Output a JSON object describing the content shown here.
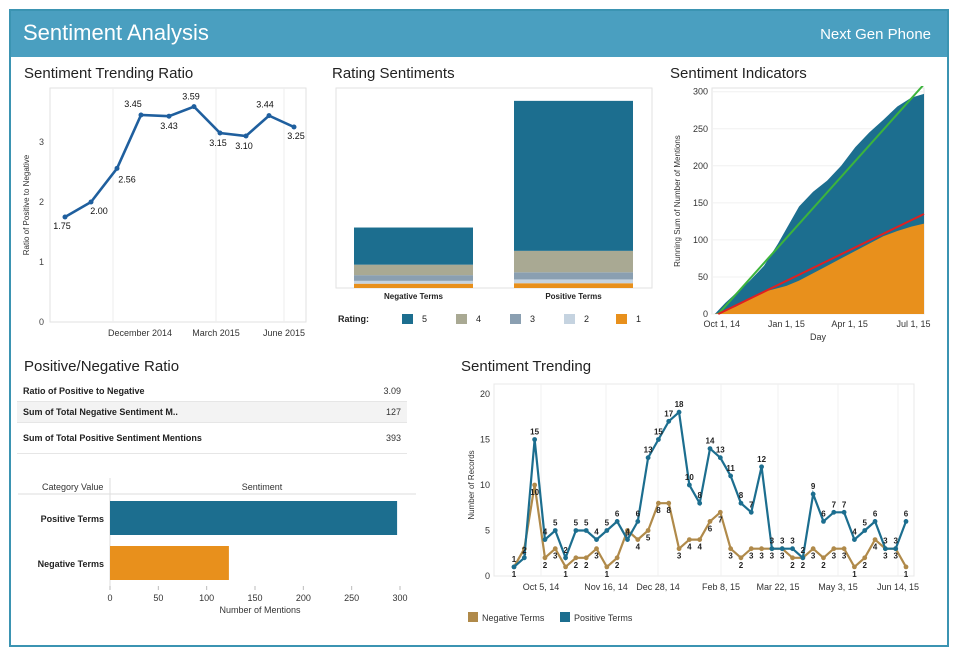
{
  "header": {
    "title": "Sentiment Analysis",
    "subtitle": "Next Gen Phone"
  },
  "colors": {
    "positive": "#1c6e8f",
    "negative": "#e8901c",
    "banner": "#4a9fc0",
    "green_line": "#3cb43c",
    "red_line": "#e02020"
  },
  "panels": {
    "trending_ratio": "Sentiment Trending Ratio",
    "rating_sentiments": "Rating Sentiments",
    "indicators": "Sentiment Indicators",
    "pos_neg_ratio": "Positive/Negative Ratio",
    "trending": "Sentiment Trending"
  },
  "table": {
    "rows": [
      {
        "label": "Ratio of Positive to Negative",
        "value": "3.09"
      },
      {
        "label": "Sum of Total Negative Sentiment M..",
        "value": "127"
      },
      {
        "label": "Sum of Total Positive Sentiment Mentions",
        "value": "393"
      }
    ]
  },
  "chart_data": [
    {
      "type": "line",
      "title": "Sentiment Trending Ratio",
      "ylabel": "Ratio of Positive to Negative",
      "xlabel": "",
      "x_ticks": [
        "December 2014",
        "March 2015",
        "June 2015"
      ],
      "y_ticks": [
        "0",
        "1",
        "2",
        "3"
      ],
      "ylim": [
        0,
        3.9
      ],
      "grid": true,
      "values": [
        1.75,
        2.0,
        2.56,
        3.45,
        3.43,
        3.59,
        3.15,
        3.1,
        3.44,
        3.25
      ],
      "labels": [
        "1.75",
        "2.00",
        "2.56",
        "3.45",
        "3.43",
        "3.59",
        "3.15",
        "3.10",
        "3.44",
        "3.25"
      ]
    },
    {
      "type": "bar",
      "stacked": true,
      "title": "Rating Sentiments",
      "categories": [
        "Negative Terms",
        "Positive Terms"
      ],
      "legend_title": "Rating:",
      "legend_position": "bottom",
      "series": [
        {
          "name": "1",
          "color": "#e8901c",
          "values": [
            9,
            10
          ]
        },
        {
          "name": "2",
          "color": "#c5d3e0",
          "values": [
            6,
            8
          ]
        },
        {
          "name": "3",
          "color": "#8a9fb1",
          "values": [
            12,
            15
          ]
        },
        {
          "name": "4",
          "color": "#a9a993",
          "values": [
            22,
            45
          ]
        },
        {
          "name": "5",
          "color": "#1c6e8f",
          "values": [
            78,
            315
          ]
        }
      ],
      "ylim": [
        0,
        420
      ]
    },
    {
      "type": "area",
      "title": "Sentiment Indicators",
      "xlabel": "Day",
      "ylabel": "Running Sum of Number of Mentions",
      "x_ticks": [
        "Oct 1, 14",
        "Jan 1, 15",
        "Apr 1, 15",
        "Jul 1, 15"
      ],
      "y_ticks": [
        "0",
        "50",
        "100",
        "150",
        "200",
        "250",
        "300"
      ],
      "ylim": [
        0,
        305
      ],
      "x_range_days": [
        -14,
        288
      ],
      "x_tick_days": [
        0,
        92,
        182,
        273
      ],
      "series": [
        {
          "name": "Positive Terms",
          "color": "#1c6e8f",
          "points": [
            [
              -10,
              0
            ],
            [
              5,
              15
            ],
            [
              20,
              28
            ],
            [
              40,
              45
            ],
            [
              60,
              65
            ],
            [
              80,
              95
            ],
            [
              92,
              115
            ],
            [
              110,
              145
            ],
            [
              130,
              165
            ],
            [
              150,
              180
            ],
            [
              170,
              200
            ],
            [
              190,
              225
            ],
            [
              210,
              245
            ],
            [
              230,
              262
            ],
            [
              250,
              280
            ],
            [
              270,
              292
            ],
            [
              288,
              297
            ]
          ]
        },
        {
          "name": "Negative Terms",
          "color": "#e8901c",
          "points": [
            [
              -10,
              0
            ],
            [
              5,
              4
            ],
            [
              20,
              10
            ],
            [
              40,
              20
            ],
            [
              60,
              30
            ],
            [
              80,
              35
            ],
            [
              92,
              38
            ],
            [
              110,
              45
            ],
            [
              130,
              55
            ],
            [
              150,
              65
            ],
            [
              170,
              75
            ],
            [
              190,
              85
            ],
            [
              210,
              95
            ],
            [
              230,
              105
            ],
            [
              250,
              112
            ],
            [
              270,
              118
            ],
            [
              288,
              122
            ]
          ]
        }
      ],
      "trend_lines": [
        {
          "color": "#3cb43c",
          "from": [
            -5,
            0
          ],
          "to": [
            288,
            310
          ]
        },
        {
          "color": "#e02020",
          "from": [
            -5,
            0
          ],
          "to": [
            288,
            135
          ]
        }
      ]
    },
    {
      "type": "bar",
      "orientation": "horizontal",
      "title": "Positive/Negative Ratio",
      "header_left": "Category Value",
      "header_right": "Sentiment",
      "categories": [
        "Positive Terms",
        "Negative Terms"
      ],
      "values": [
        297,
        123
      ],
      "colors": [
        "#1c6e8f",
        "#e8901c"
      ],
      "xlabel": "Number of Mentions",
      "x_ticks": [
        "0",
        "50",
        "100",
        "150",
        "200",
        "250",
        "300"
      ],
      "xlim": [
        0,
        300
      ]
    },
    {
      "type": "line",
      "title": "Sentiment Trending",
      "ylabel": "Number of Records",
      "x_ticks": [
        "Oct 5, 14",
        "Nov 16, 14",
        "Dec 28, 14",
        "Feb 8, 15",
        "Mar 22, 15",
        "May 3, 15",
        "Jun 14, 15"
      ],
      "y_ticks": [
        "0",
        "5",
        "10",
        "15",
        "20"
      ],
      "ylim": [
        0,
        20
      ],
      "legend_position": "bottom",
      "series": [
        {
          "name": "Positive Terms",
          "color": "#1c6e8f",
          "values": [
            1,
            2,
            15,
            4,
            5,
            2,
            5,
            5,
            4,
            5,
            6,
            4,
            6,
            13,
            15,
            17,
            18,
            10,
            8,
            14,
            13,
            11,
            8,
            7,
            12,
            3,
            3,
            3,
            2,
            9,
            6,
            7,
            7,
            4,
            5,
            6,
            3,
            3,
            6
          ]
        },
        {
          "name": "Negative Terms",
          "color": "#b08a4a",
          "values": [
            1,
            3,
            10,
            2,
            3,
            1,
            2,
            2,
            3,
            1,
            2,
            5,
            4,
            5,
            8,
            8,
            3,
            4,
            4,
            6,
            7,
            3,
            2,
            3,
            3,
            3,
            3,
            2,
            2,
            3,
            2,
            3,
            3,
            1,
            2,
            4,
            3,
            3,
            1
          ]
        }
      ]
    }
  ]
}
